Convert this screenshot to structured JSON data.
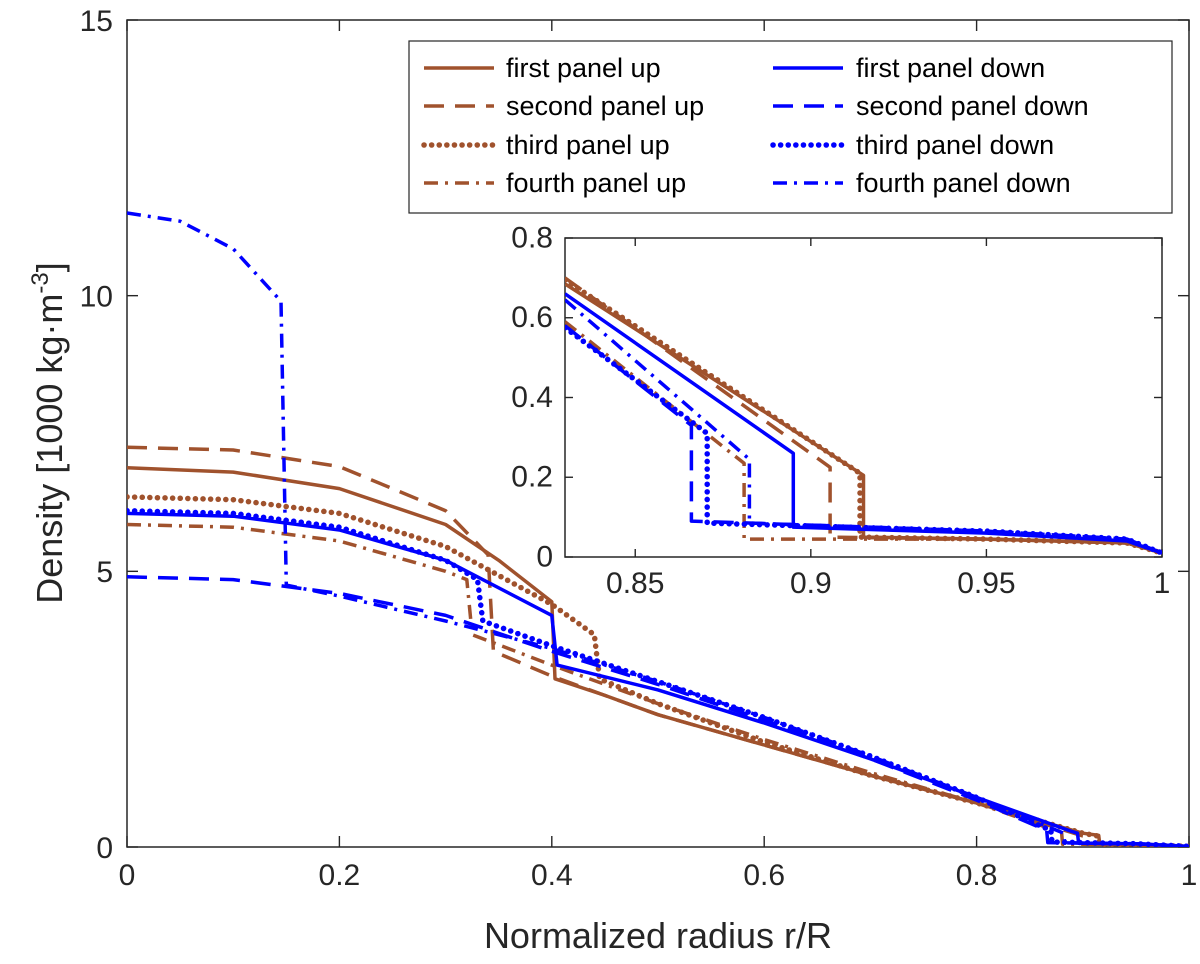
{
  "chart_data": [
    {
      "type": "line",
      "name": "main",
      "xlabel": "Normalized radius r/R",
      "ylabel": "Density [1000 kg·m",
      "ylabel_superscript": "-3",
      "ylabel_close": "]",
      "xlim": [
        0,
        1
      ],
      "ylim": [
        0,
        15
      ],
      "xticks": [
        0,
        0.2,
        0.4,
        0.6,
        0.8,
        1
      ],
      "xtick_labels": [
        "0",
        "0.2",
        "0.4",
        "0.6",
        "0.8",
        "1"
      ],
      "yticks": [
        0,
        5,
        10,
        15
      ],
      "ytick_labels": [
        "0",
        "5",
        "10",
        "15"
      ],
      "grid": false,
      "legend": {
        "location": "top-right",
        "columns": 2,
        "entries": [
          "first panel up",
          "second panel up",
          "third panel up",
          "fourth panel up",
          "first panel down",
          "second panel down",
          "third panel down",
          "fourth panel down"
        ]
      },
      "series": [
        {
          "name": "first panel up",
          "color": "#a0522d",
          "style": "solid",
          "x": [
            0,
            0.1,
            0.2,
            0.3,
            0.35,
            0.4,
            0.403,
            0.45,
            0.5,
            0.6,
            0.7,
            0.8,
            0.9,
            0.915,
            0.916,
            0.95,
            1.0
          ],
          "y": [
            6.88,
            6.8,
            6.5,
            5.85,
            5.2,
            4.45,
            3.05,
            2.75,
            2.4,
            1.85,
            1.3,
            0.8,
            0.25,
            0.21,
            0.05,
            0.04,
            0.01
          ]
        },
        {
          "name": "second panel up",
          "color": "#a0522d",
          "style": "dashed",
          "x": [
            0,
            0.1,
            0.2,
            0.3,
            0.33,
            0.34,
            0.345,
            0.4,
            0.5,
            0.6,
            0.7,
            0.8,
            0.9,
            0.906,
            0.907,
            0.95,
            1.0
          ],
          "y": [
            7.25,
            7.2,
            6.9,
            6.1,
            5.5,
            5.3,
            3.55,
            3.1,
            2.4,
            1.85,
            1.3,
            0.8,
            0.2,
            0.18,
            0.05,
            0.04,
            0.01
          ]
        },
        {
          "name": "third panel up",
          "color": "#a0522d",
          "style": "dotted",
          "x": [
            0,
            0.1,
            0.2,
            0.3,
            0.4,
            0.44,
            0.445,
            0.5,
            0.6,
            0.7,
            0.8,
            0.9,
            0.914,
            0.915,
            0.95,
            1.0
          ],
          "y": [
            6.35,
            6.3,
            6.05,
            5.45,
            4.4,
            3.85,
            3.05,
            2.6,
            1.9,
            1.3,
            0.8,
            0.25,
            0.2,
            0.05,
            0.04,
            0.01
          ]
        },
        {
          "name": "fourth panel up",
          "color": "#a0522d",
          "style": "dashdot",
          "x": [
            0,
            0.1,
            0.2,
            0.3,
            0.32,
            0.325,
            0.4,
            0.5,
            0.6,
            0.7,
            0.8,
            0.88,
            0.881,
            0.9,
            0.95,
            1.0
          ],
          "y": [
            5.85,
            5.8,
            5.55,
            5.0,
            4.85,
            3.85,
            3.3,
            2.6,
            1.95,
            1.35,
            0.8,
            0.26,
            0.05,
            0.05,
            0.04,
            0.01
          ]
        },
        {
          "name": "first panel down",
          "color": "#0000ff",
          "style": "solid",
          "x": [
            0,
            0.1,
            0.2,
            0.3,
            0.4,
            0.405,
            0.5,
            0.6,
            0.7,
            0.8,
            0.89,
            0.895,
            0.896,
            0.95,
            1.0
          ],
          "y": [
            6.05,
            6.0,
            5.75,
            5.2,
            4.2,
            3.3,
            2.85,
            2.25,
            1.6,
            0.9,
            0.28,
            0.25,
            0.07,
            0.06,
            0.01
          ]
        },
        {
          "name": "second panel down",
          "color": "#0000ff",
          "style": "dashed",
          "x": [
            0,
            0.1,
            0.2,
            0.3,
            0.4,
            0.5,
            0.6,
            0.7,
            0.8,
            0.866,
            0.867,
            0.9,
            0.95,
            1.0
          ],
          "y": [
            4.9,
            4.85,
            4.6,
            4.2,
            3.55,
            2.95,
            2.3,
            1.6,
            0.85,
            0.3,
            0.08,
            0.07,
            0.06,
            0.01
          ]
        },
        {
          "name": "third panel down",
          "color": "#0000ff",
          "style": "dotted",
          "x": [
            0,
            0.1,
            0.2,
            0.3,
            0.33,
            0.335,
            0.4,
            0.5,
            0.6,
            0.7,
            0.8,
            0.87,
            0.871,
            0.9,
            0.95,
            1.0
          ],
          "y": [
            6.1,
            6.05,
            5.8,
            5.2,
            4.85,
            4.1,
            3.65,
            3.0,
            2.35,
            1.65,
            0.9,
            0.3,
            0.09,
            0.08,
            0.06,
            0.01
          ]
        },
        {
          "name": "fourth panel down",
          "color": "#0000ff",
          "style": "dashdot",
          "x": [
            0,
            0.05,
            0.1,
            0.145,
            0.15,
            0.2,
            0.3,
            0.4,
            0.5,
            0.6,
            0.7,
            0.8,
            0.882,
            0.883,
            0.9,
            0.95,
            1.0
          ],
          "y": [
            11.5,
            11.35,
            10.85,
            9.9,
            4.75,
            4.55,
            4.1,
            3.6,
            3.0,
            2.35,
            1.65,
            0.9,
            0.25,
            0.08,
            0.07,
            0.06,
            0.01
          ]
        }
      ]
    },
    {
      "type": "line",
      "name": "inset",
      "xlim": [
        0.83,
        1
      ],
      "ylim": [
        0,
        0.8
      ],
      "xticks": [
        0.85,
        0.9,
        0.95,
        1
      ],
      "xtick_labels": [
        "0.85",
        "0.9",
        "0.95",
        "1"
      ],
      "yticks": [
        0,
        0.2,
        0.4,
        0.6,
        0.8
      ],
      "ytick_labels": [
        "0",
        "0.2",
        "0.4",
        "0.6",
        "0.8"
      ],
      "grid": false,
      "series": [
        {
          "name": "first panel up",
          "x": [
            0.83,
            0.915,
            0.915,
            0.95,
            0.99,
            1.0
          ],
          "y": [
            0.685,
            0.205,
            0.05,
            0.045,
            0.035,
            0.01
          ]
        },
        {
          "name": "second panel up",
          "x": [
            0.83,
            0.9055,
            0.9055,
            0.95,
            0.99,
            1.0
          ],
          "y": [
            0.7,
            0.225,
            0.05,
            0.045,
            0.035,
            0.01
          ]
        },
        {
          "name": "third panel up",
          "x": [
            0.83,
            0.914,
            0.914,
            0.95,
            0.99,
            1.0
          ],
          "y": [
            0.695,
            0.21,
            0.05,
            0.045,
            0.035,
            0.01
          ]
        },
        {
          "name": "fourth panel up",
          "x": [
            0.83,
            0.881,
            0.881,
            0.95,
            0.99,
            1.0
          ],
          "y": [
            0.59,
            0.235,
            0.045,
            0.045,
            0.035,
            0.01
          ]
        },
        {
          "name": "first panel down",
          "x": [
            0.83,
            0.895,
            0.895,
            0.95,
            0.99,
            1.0
          ],
          "y": [
            0.66,
            0.26,
            0.075,
            0.06,
            0.04,
            0.01
          ]
        },
        {
          "name": "second panel down",
          "x": [
            0.83,
            0.866,
            0.866,
            0.95,
            0.99,
            1.0
          ],
          "y": [
            0.58,
            0.33,
            0.09,
            0.065,
            0.045,
            0.01
          ]
        },
        {
          "name": "third panel down",
          "x": [
            0.83,
            0.8705,
            0.8705,
            0.95,
            0.99,
            1.0
          ],
          "y": [
            0.575,
            0.31,
            0.085,
            0.065,
            0.045,
            0.01
          ]
        },
        {
          "name": "fourth panel down",
          "x": [
            0.83,
            0.8825,
            0.8825,
            0.95,
            0.99,
            1.0
          ],
          "y": [
            0.645,
            0.245,
            0.085,
            0.065,
            0.045,
            0.01
          ]
        }
      ]
    }
  ]
}
